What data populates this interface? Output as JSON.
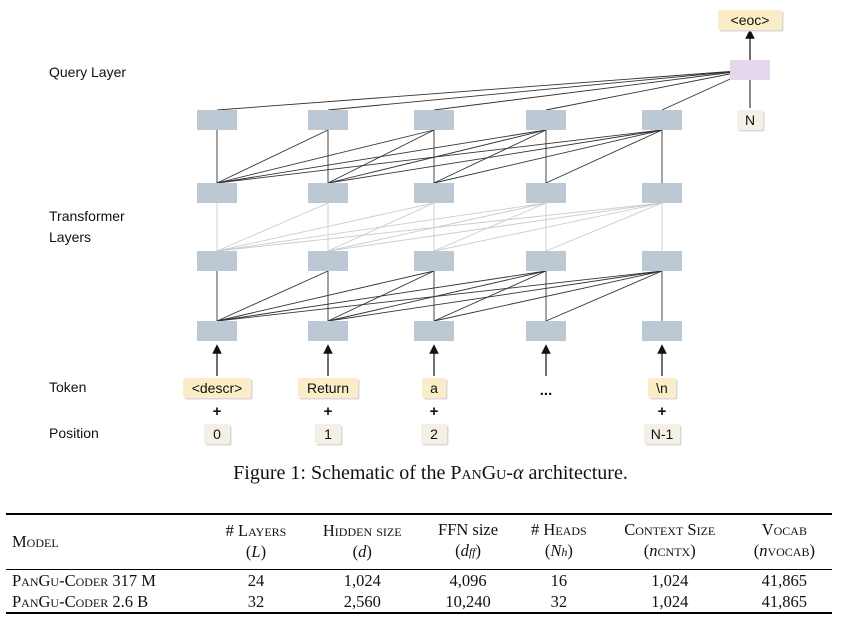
{
  "diagram": {
    "row_labels": {
      "query": "Query Layer",
      "transformer_line1": "Transformer",
      "transformer_line2": "Layers",
      "token": "Token",
      "position": "Position"
    },
    "tokens": [
      "<descr>",
      "Return",
      "a",
      "...",
      "\\n"
    ],
    "positions": [
      "0",
      "1",
      "2",
      "",
      "N-1"
    ],
    "plus": "+",
    "query_output": "<eoc>",
    "query_position": "N",
    "colors": {
      "node": "#bcc8d3",
      "query_node": "#e6d8ec",
      "token_box": "#fbedc8",
      "position_box": "#f4f0e6",
      "faded_edge": "#cccccc",
      "edge": "#333333"
    }
  },
  "caption": {
    "prefix": "Figure 1: Schematic of the P",
    "name_sc": "an",
    "name_g": "G",
    "name_u": "u",
    "dash_alpha": "-α",
    "suffix": " architecture."
  },
  "table": {
    "headers": [
      {
        "line1": "Model",
        "line2": "",
        "line2_sub": ""
      },
      {
        "line1": "# Layers",
        "line2": "L",
        "line2_sub": ""
      },
      {
        "line1": "Hidden size",
        "line2": "d",
        "line2_sub": ""
      },
      {
        "line1": "FFN size",
        "line2": "d",
        "line2_sub": "ff"
      },
      {
        "line1": "# Heads",
        "line2": "N",
        "line2_sub": "h"
      },
      {
        "line1": "Context Size",
        "line2": "n",
        "line2_sub": "CNTX"
      },
      {
        "line1": "Vocab",
        "line2": "n",
        "line2_sub": "VOCAB"
      }
    ],
    "rows": [
      {
        "model": "PanGu-Coder 317 M",
        "layers": "24",
        "hidden": "1,024",
        "ffn": "4,096",
        "heads": "16",
        "context": "1,024",
        "vocab": "41,865"
      },
      {
        "model": "PanGu-Coder 2.6 B",
        "layers": "32",
        "hidden": "2,560",
        "ffn": "10,240",
        "heads": "32",
        "context": "1,024",
        "vocab": "41,865"
      }
    ]
  }
}
